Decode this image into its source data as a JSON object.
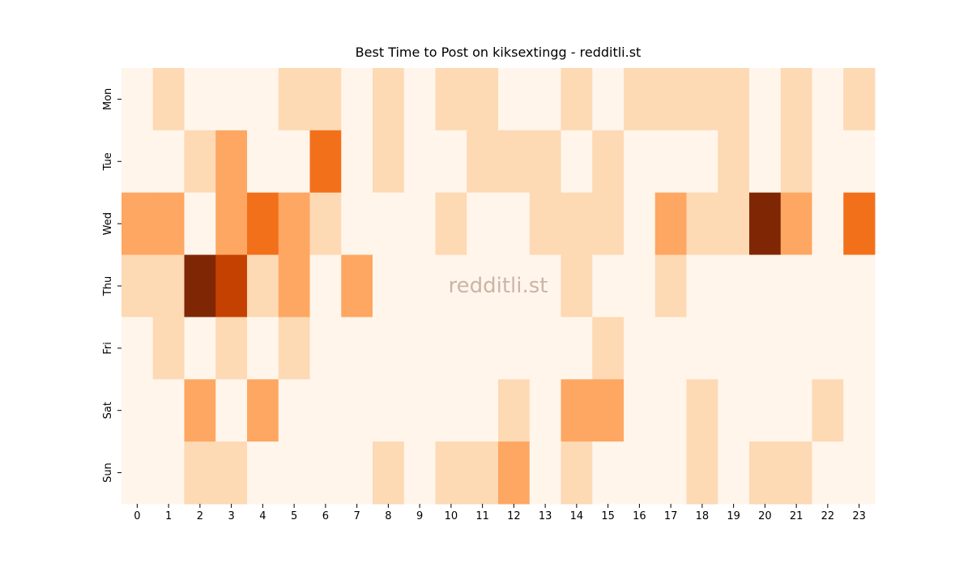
{
  "chart_data": {
    "type": "heatmap",
    "title": "Best Time to Post on kiksextingg - redditli.st",
    "watermark": "redditli.st",
    "categories": [
      "0",
      "1",
      "2",
      "3",
      "4",
      "5",
      "6",
      "7",
      "8",
      "9",
      "10",
      "11",
      "12",
      "13",
      "14",
      "15",
      "16",
      "17",
      "18",
      "19",
      "20",
      "21",
      "22",
      "23"
    ],
    "y_categories": [
      "Mon",
      "Tue",
      "Wed",
      "Thu",
      "Fri",
      "Sat",
      "Sun"
    ],
    "values": [
      [
        0,
        1,
        0,
        0,
        0,
        1,
        1,
        0,
        1,
        0,
        1,
        1,
        0,
        0,
        1,
        0,
        1,
        1,
        1,
        1,
        0,
        1,
        0,
        1
      ],
      [
        0,
        0,
        1,
        2,
        0,
        0,
        3,
        0,
        1,
        0,
        0,
        1,
        1,
        1,
        0,
        1,
        0,
        0,
        0,
        1,
        0,
        1,
        0,
        0
      ],
      [
        2,
        2,
        0,
        2,
        3,
        2,
        1,
        0,
        0,
        0,
        1,
        0,
        0,
        1,
        1,
        1,
        0,
        2,
        1,
        1,
        5,
        2,
        0,
        3
      ],
      [
        1,
        1,
        5,
        4,
        1,
        2,
        0,
        2,
        0,
        0,
        0,
        0,
        0,
        0,
        1,
        0,
        0,
        1,
        0,
        0,
        0,
        0,
        0,
        0
      ],
      [
        0,
        1,
        0,
        1,
        0,
        1,
        0,
        0,
        0,
        0,
        0,
        0,
        0,
        0,
        0,
        1,
        0,
        0,
        0,
        0,
        0,
        0,
        0,
        0
      ],
      [
        0,
        0,
        2,
        0,
        2,
        0,
        0,
        0,
        0,
        0,
        0,
        0,
        1,
        0,
        2,
        2,
        0,
        0,
        1,
        0,
        0,
        0,
        1,
        0
      ],
      [
        0,
        0,
        1,
        1,
        0,
        0,
        0,
        0,
        1,
        0,
        1,
        1,
        2,
        0,
        1,
        0,
        0,
        0,
        1,
        0,
        1,
        1,
        0,
        0
      ]
    ],
    "vlim": [
      0,
      5
    ],
    "colormap": [
      "#fff5eb",
      "#fdd9b4",
      "#fda762",
      "#f3701b",
      "#c54102",
      "#7f2704"
    ]
  }
}
